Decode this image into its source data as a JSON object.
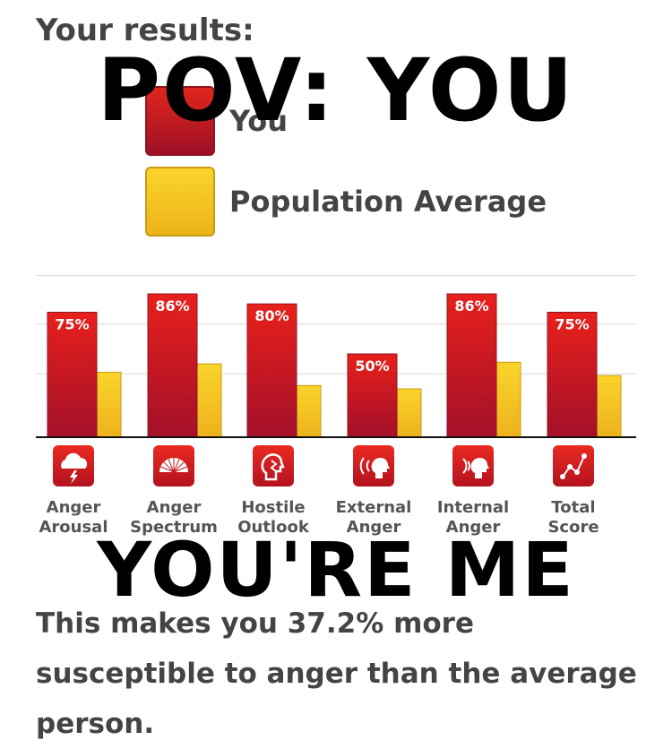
{
  "heading": "Your results:",
  "meme": {
    "top": "POV: YOU",
    "bottom": "YOU'RE ME"
  },
  "summary": "This makes you 37.2% more susceptible to anger than the average person.",
  "colors": {
    "you": "#d61a1e",
    "average": "#f5c526",
    "text": "#444444"
  },
  "chart_data": {
    "type": "bar",
    "legend": [
      "You",
      "Population Average"
    ],
    "categories": [
      {
        "line1": "Anger",
        "line2": "Arousal",
        "icon": "storm-cloud-icon"
      },
      {
        "line1": "Anger",
        "line2": "Spectrum",
        "icon": "spectrum-fan-icon"
      },
      {
        "line1": "Hostile",
        "line2": "Outlook",
        "icon": "hostile-head-icon"
      },
      {
        "line1": "External",
        "line2": "Anger",
        "icon": "shouting-head-icon"
      },
      {
        "line1": "Internal",
        "line2": "Anger",
        "icon": "speaking-head-icon"
      },
      {
        "line1": "Total",
        "line2": "Score",
        "icon": "score-graph-icon"
      }
    ],
    "series": [
      {
        "name": "You",
        "values": [
          75,
          86,
          80,
          50,
          86,
          75
        ],
        "labels": [
          "75%",
          "86%",
          "80%",
          "50%",
          "86%",
          "75%"
        ]
      },
      {
        "name": "Population Average",
        "values": [
          39,
          44,
          31,
          29,
          45,
          37
        ]
      }
    ],
    "ylim": [
      0,
      100
    ],
    "grid": true
  }
}
